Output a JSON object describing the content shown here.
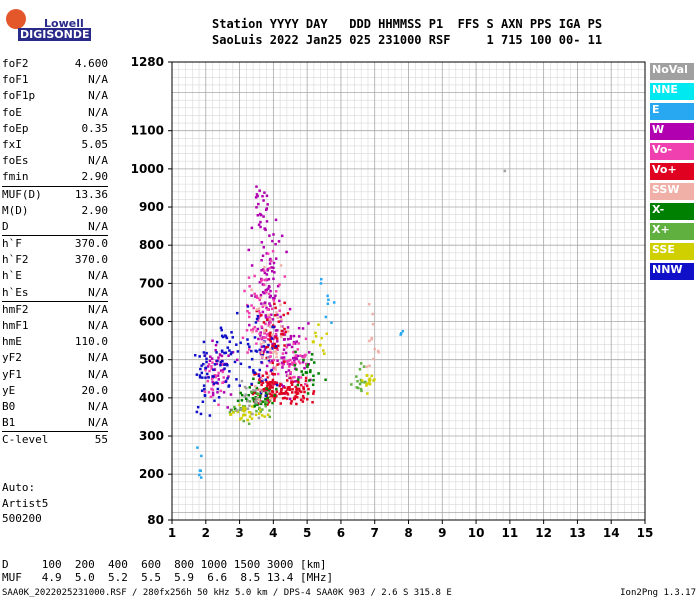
{
  "logo": {
    "top": "Lowell",
    "bottom": "DIGISONDE"
  },
  "header": {
    "line1": "Station YYYY DAY   DDD HHMMSS P1  FFS S AXN PPS IGA PS",
    "line2": "SaoLuis 2022 Jan25 025 231000 RSF     1 715 100 00- 11"
  },
  "params": [
    {
      "label": "foF2",
      "value": "4.600"
    },
    {
      "label": "foF1",
      "value": "N/A"
    },
    {
      "label": "foF1p",
      "value": "N/A"
    },
    {
      "label": "foE",
      "value": "N/A"
    },
    {
      "label": "foEp",
      "value": "0.35"
    },
    {
      "label": "fxI",
      "value": "5.05"
    },
    {
      "label": "foEs",
      "value": "N/A"
    },
    {
      "label": "fmin",
      "value": "2.90"
    },
    {
      "label": "MUF(D)",
      "value": "13.36",
      "sep": true
    },
    {
      "label": "M(D)",
      "value": "2.90"
    },
    {
      "label": "D",
      "value": "N/A"
    },
    {
      "label": "h`F",
      "value": "370.0",
      "sep": true
    },
    {
      "label": "h`F2",
      "value": "370.0"
    },
    {
      "label": "h`E",
      "value": "N/A"
    },
    {
      "label": "h`Es",
      "value": "N/A"
    },
    {
      "label": "hmF2",
      "value": "N/A",
      "sep": true
    },
    {
      "label": "hmF1",
      "value": "N/A"
    },
    {
      "label": "hmE",
      "value": "110.0"
    },
    {
      "label": "yF2",
      "value": "N/A"
    },
    {
      "label": "yF1",
      "value": "N/A"
    },
    {
      "label": "yE",
      "value": "20.0"
    },
    {
      "label": "B0",
      "value": "N/A"
    },
    {
      "label": "B1",
      "value": "N/A"
    },
    {
      "label": "C-level",
      "value": "55",
      "sep": true
    }
  ],
  "auto": {
    "line1": "Auto:",
    "line2": "Artist5",
    "line3": "500200"
  },
  "footer": {
    "d_row": "D     100  200  400  600  800 1000 1500 3000 [km]",
    "muf_row": "MUF   4.9  5.0  5.2  5.5  5.9  6.6  8.5 13.4 [MHz]"
  },
  "credit": "SAA0K_2022025231000.RSF / 280fx256h 50 kHz 5.0 km / DPS-4 SAA0K 903 / 2.6 S 315.8 E",
  "version": "Ion2Png 1.3.17",
  "legend": [
    {
      "label": "NoVal",
      "color": "#a0a0a0"
    },
    {
      "label": "NNE",
      "color": "#00e8f0"
    },
    {
      "label": "E",
      "color": "#28a8f0"
    },
    {
      "label": "W",
      "color": "#b000b0"
    },
    {
      "label": "Vo-",
      "color": "#f040b0"
    },
    {
      "label": "Vo+",
      "color": "#e00020"
    },
    {
      "label": "SSW",
      "color": "#f0b0a8"
    },
    {
      "label": "X-",
      "color": "#008000"
    },
    {
      "label": "X+",
      "color": "#60b040"
    },
    {
      "label": "SSE",
      "color": "#d0d000"
    },
    {
      "label": "NNW",
      "color": "#1010c8"
    }
  ],
  "chart_data": {
    "type": "scatter",
    "x_ticks": [
      1,
      2,
      3,
      4,
      5,
      6,
      7,
      8,
      9,
      10,
      11,
      12,
      13,
      14,
      15
    ],
    "y_ticks": [
      80,
      200,
      300,
      400,
      500,
      600,
      700,
      800,
      900,
      1000,
      1100,
      1280
    ],
    "xlim": [
      1,
      15
    ],
    "ylim": [
      80,
      1280
    ],
    "grid": true,
    "series": [
      {
        "name": "W",
        "color": "#b000b0",
        "clusters": [
          [
            3.8,
            650,
            0.35,
            150,
            120
          ],
          [
            4.5,
            520,
            0.35,
            60,
            60
          ],
          [
            2.4,
            480,
            0.3,
            60,
            40
          ],
          [
            3.6,
            900,
            0.15,
            70,
            20
          ]
        ]
      },
      {
        "name": "Vo-",
        "color": "#f040b0",
        "clusters": [
          [
            3.7,
            600,
            0.35,
            120,
            90
          ],
          [
            4.6,
            500,
            0.3,
            40,
            40
          ],
          [
            2.2,
            450,
            0.25,
            50,
            30
          ]
        ]
      },
      {
        "name": "Vo+",
        "color": "#e00020",
        "clusters": [
          [
            3.8,
            420,
            0.4,
            30,
            90
          ],
          [
            4.7,
            420,
            0.35,
            25,
            50
          ],
          [
            4.0,
            560,
            0.3,
            60,
            40
          ]
        ]
      },
      {
        "name": "X-",
        "color": "#008000",
        "clusters": [
          [
            3.5,
            400,
            0.4,
            30,
            40
          ],
          [
            5.0,
            480,
            0.3,
            40,
            25
          ]
        ]
      },
      {
        "name": "X+",
        "color": "#60b040",
        "clusters": [
          [
            3.3,
            380,
            0.4,
            25,
            30
          ],
          [
            6.5,
            460,
            0.15,
            30,
            15
          ]
        ]
      },
      {
        "name": "SSE",
        "color": "#d0d000",
        "clusters": [
          [
            3.2,
            365,
            0.35,
            15,
            30
          ],
          [
            6.8,
            450,
            0.15,
            20,
            15
          ],
          [
            5.3,
            560,
            0.2,
            30,
            12
          ]
        ]
      },
      {
        "name": "NNW",
        "color": "#1010c8",
        "clusters": [
          [
            2.5,
            500,
            0.4,
            70,
            50
          ],
          [
            1.9,
            450,
            0.2,
            80,
            30
          ],
          [
            3.6,
            520,
            0.4,
            80,
            40
          ]
        ]
      },
      {
        "name": "E",
        "color": "#28a8f0",
        "clusters": [
          [
            1.8,
            230,
            0.1,
            40,
            6
          ],
          [
            5.5,
            620,
            0.2,
            80,
            8
          ],
          [
            7.8,
            590,
            0.05,
            20,
            3
          ]
        ]
      },
      {
        "name": "SSW",
        "color": "#f0b0a8",
        "clusters": [
          [
            3.9,
            560,
            0.4,
            120,
            40
          ],
          [
            6.9,
            560,
            0.15,
            80,
            12
          ]
        ]
      },
      {
        "name": "NoVal",
        "color": "#a0a0a0",
        "clusters": [
          [
            3.3,
            400,
            0.3,
            40,
            20
          ],
          [
            10.8,
            995,
            0.02,
            3,
            1
          ]
        ]
      }
    ]
  }
}
